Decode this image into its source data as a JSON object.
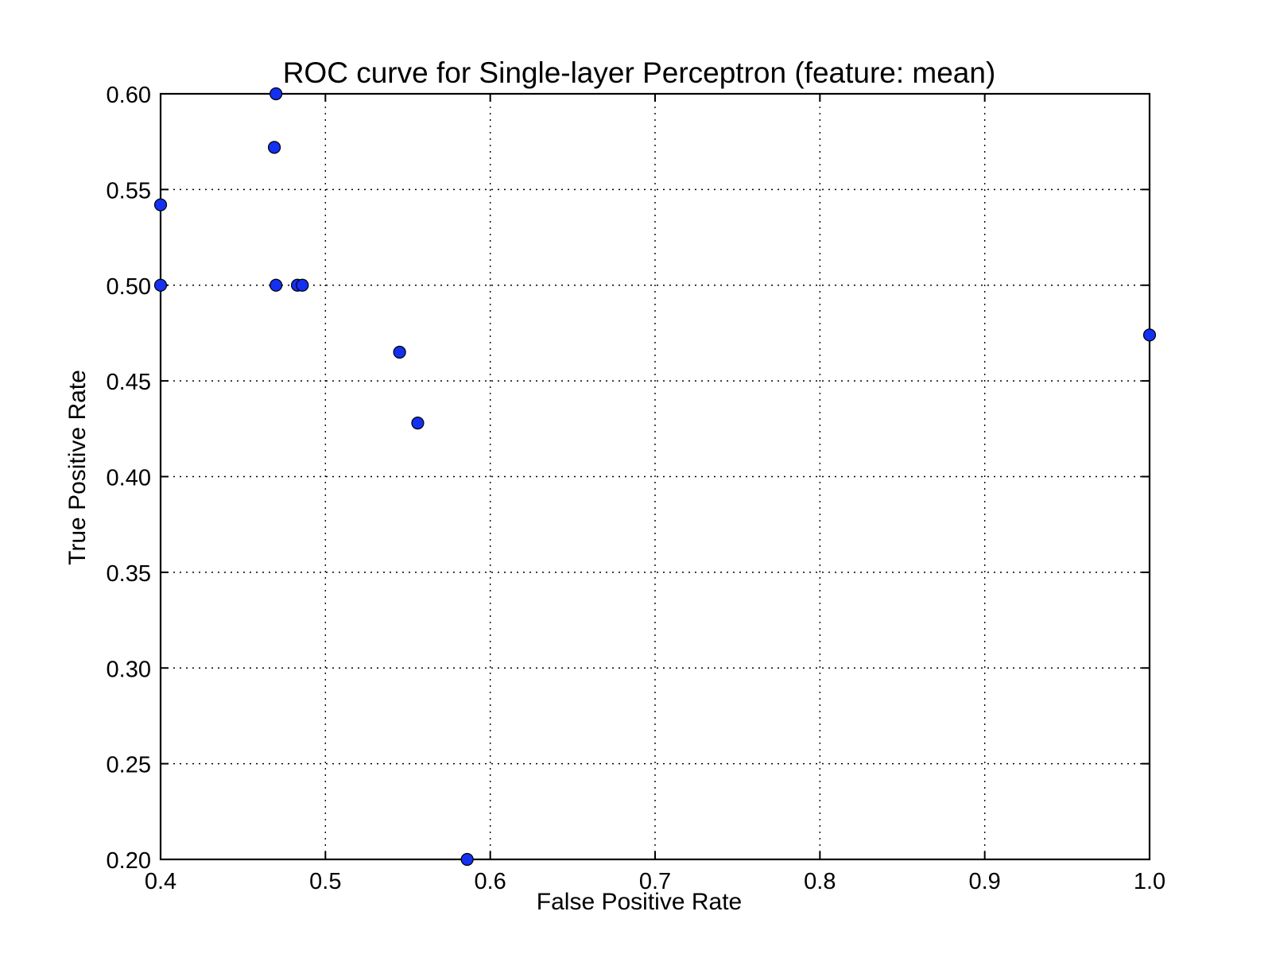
{
  "chart_data": {
    "type": "scatter",
    "title": "ROC curve for Single-layer Perceptron (feature: mean)",
    "xlabel": "False Positive Rate",
    "ylabel": "True Positive Rate",
    "xlim": [
      0.4,
      1.0
    ],
    "ylim": [
      0.2,
      0.6
    ],
    "xticks": [
      0.4,
      0.5,
      0.6,
      0.7,
      0.8,
      0.9,
      1.0
    ],
    "xtick_labels": [
      "0.4",
      "0.5",
      "0.6",
      "0.7",
      "0.8",
      "0.9",
      "1.0"
    ],
    "yticks": [
      0.2,
      0.25,
      0.3,
      0.35,
      0.4,
      0.45,
      0.5,
      0.55,
      0.6
    ],
    "ytick_labels": [
      "0.20",
      "0.25",
      "0.30",
      "0.35",
      "0.40",
      "0.45",
      "0.50",
      "0.55",
      "0.60"
    ],
    "grid": true,
    "marker_color": "#1430f0",
    "x": [
      0.47,
      0.469,
      0.4,
      0.4,
      0.47,
      0.483,
      0.486,
      0.545,
      0.556,
      1.0,
      0.586
    ],
    "y": [
      0.6,
      0.572,
      0.542,
      0.5,
      0.5,
      0.5,
      0.5,
      0.465,
      0.428,
      0.474,
      0.2
    ]
  }
}
